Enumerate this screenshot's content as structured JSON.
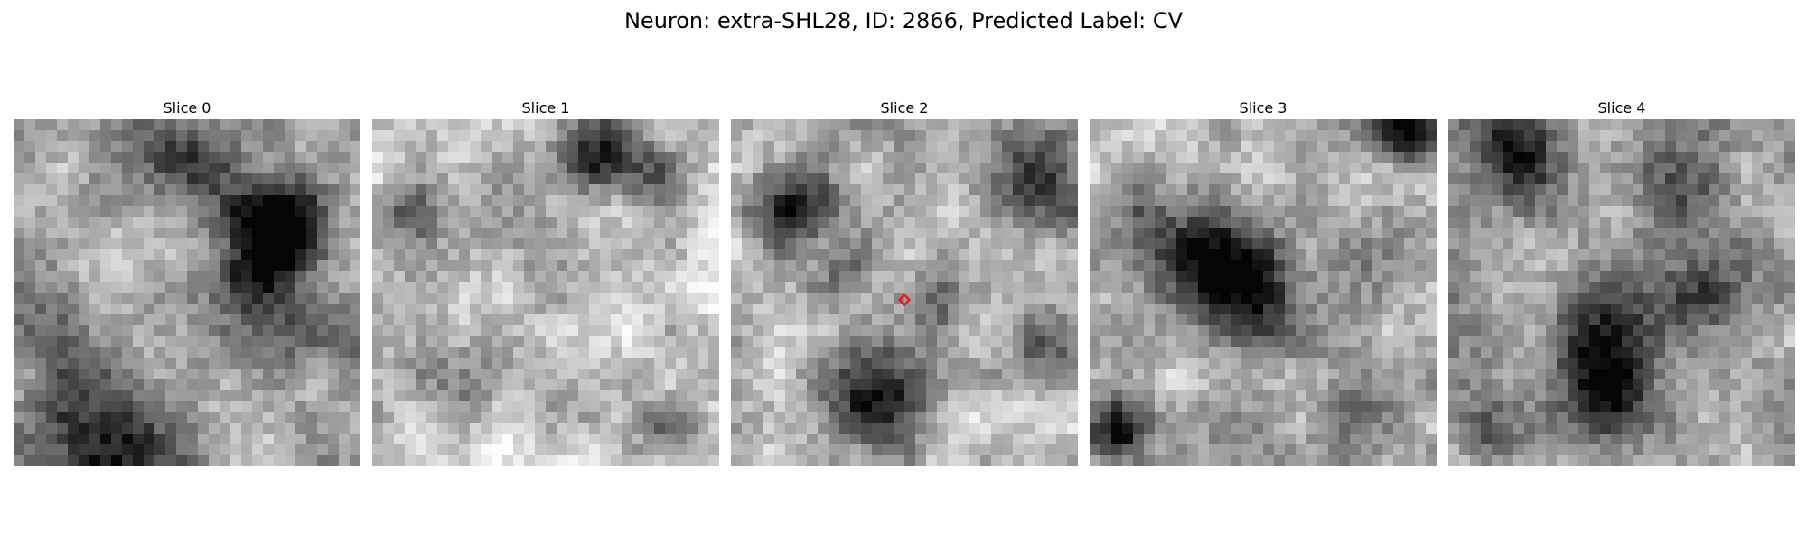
{
  "figure": {
    "title": "Neuron: extra-SHL28, ID: 2866, Predicted Label: CV",
    "marker_color": "#e8191b",
    "marker_on_slice": 2,
    "grid_size": 32
  },
  "slices": [
    {
      "title": "Slice 0",
      "seed": 11
    },
    {
      "title": "Slice 1",
      "seed": 23
    },
    {
      "title": "Slice 2",
      "seed": 37
    },
    {
      "title": "Slice 3",
      "seed": 41
    },
    {
      "title": "Slice 4",
      "seed": 53
    }
  ]
}
